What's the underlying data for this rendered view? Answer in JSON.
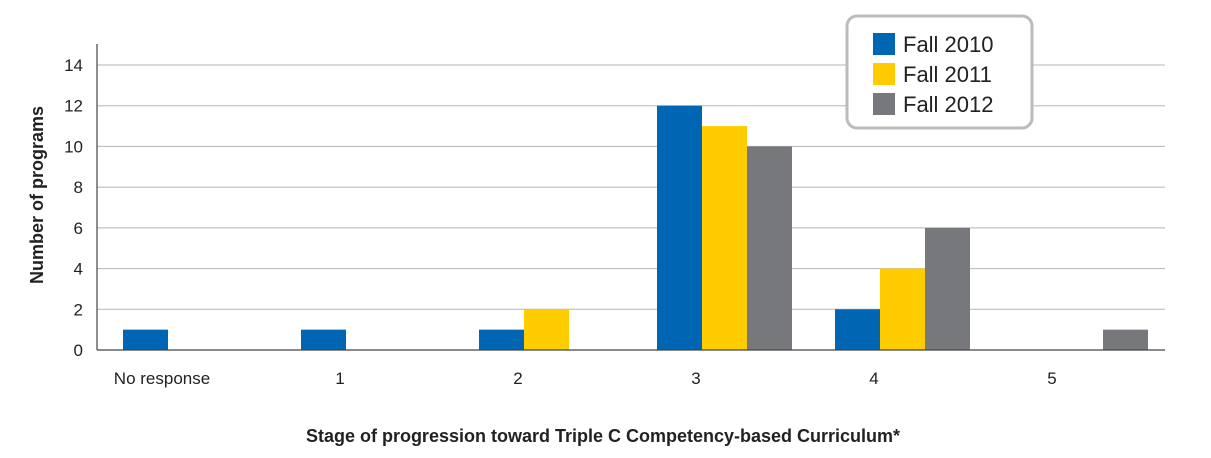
{
  "chart_data": {
    "type": "bar",
    "title": "",
    "xlabel": "Stage of progression toward Triple C  Competency-based Curriculum*",
    "ylabel": "Number of programs",
    "ylim": [
      0,
      14
    ],
    "yticks": [
      0,
      2,
      4,
      6,
      8,
      10,
      12,
      14
    ],
    "categories": [
      "No response",
      "1",
      "2",
      "3",
      "4",
      "5"
    ],
    "series": [
      {
        "name": "Fall 2010",
        "color": "#0066b3",
        "values": [
          1,
          1,
          1,
          12,
          2,
          0
        ]
      },
      {
        "name": "Fall 2011",
        "color": "#ffcc00",
        "values": [
          0,
          0,
          2,
          11,
          4,
          0
        ]
      },
      {
        "name": "Fall 2012",
        "color": "#77787b",
        "values": [
          0,
          0,
          0,
          10,
          6,
          1
        ]
      }
    ],
    "grid": true,
    "legend": "top-right"
  }
}
